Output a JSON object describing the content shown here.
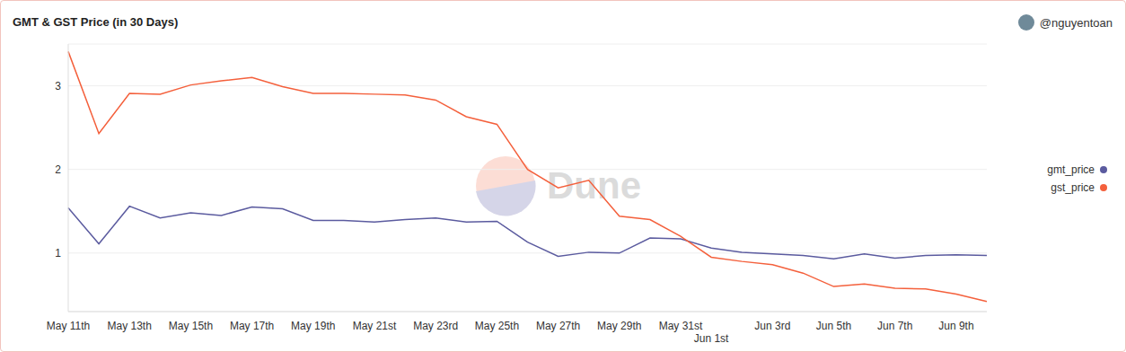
{
  "chart_data": {
    "type": "line",
    "title": "GMT & GST Price (in 30 Days)",
    "annotations": [
      "@nguyentoan",
      "Dune"
    ],
    "categories": [
      "May 11th",
      null,
      "May 13th",
      null,
      "May 15th",
      null,
      "May 17th",
      null,
      "May 19th",
      null,
      "May 21st",
      null,
      "May 23rd",
      null,
      "May 25th",
      null,
      "May 27th",
      null,
      "May 29th",
      null,
      "May 31st",
      "Jun 1st",
      null,
      "Jun 3rd",
      null,
      "Jun 5th",
      null,
      "Jun 7th",
      null,
      "Jun 9th",
      null
    ],
    "series": [
      {
        "name": "gmt_price",
        "color": "#5b5b9f",
        "values": [
          1.54,
          1.11,
          1.56,
          1.42,
          1.48,
          1.45,
          1.55,
          1.53,
          1.39,
          1.39,
          1.37,
          1.4,
          1.42,
          1.37,
          1.38,
          1.13,
          0.96,
          1.01,
          1.0,
          1.18,
          1.17,
          1.06,
          1.01,
          0.99,
          0.97,
          0.93,
          0.99,
          0.94,
          0.97,
          0.98,
          0.97
        ]
      },
      {
        "name": "gst_price",
        "color": "#f4603c",
        "values": [
          3.41,
          2.43,
          2.91,
          2.9,
          3.01,
          3.06,
          3.1,
          2.99,
          2.91,
          2.91,
          2.9,
          2.89,
          2.83,
          2.63,
          2.54,
          2.0,
          1.78,
          1.87,
          1.44,
          1.4,
          1.2,
          0.95,
          0.9,
          0.86,
          0.76,
          0.6,
          0.63,
          0.58,
          0.57,
          0.51,
          0.42
        ]
      }
    ],
    "ylim": [
      0.3,
      3.5
    ],
    "yticks": [
      1,
      2,
      3
    ],
    "grid": true,
    "legend": "right"
  }
}
